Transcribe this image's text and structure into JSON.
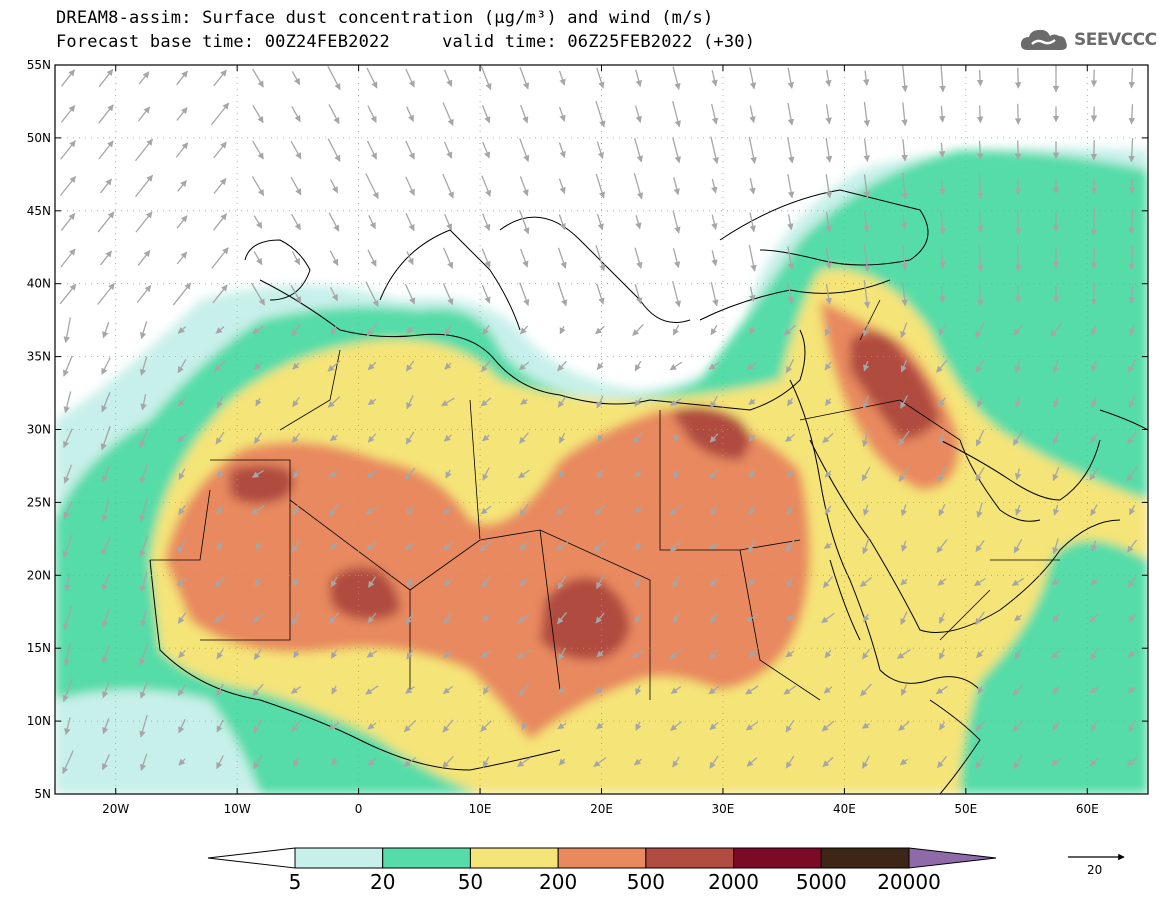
{
  "title": {
    "line1": "DREAM8-assim: Surface dust concentration (µg/m³) and wind (m/s)",
    "base_time_label": "Forecast base time: 00Z24FEB2022",
    "valid_time_label": "valid time: 06Z25FEB2022 (+30)"
  },
  "logo": {
    "text": "SEEVCCC",
    "icon": "cloud-icon",
    "color": "#6b6b6b"
  },
  "map": {
    "lon_range": [
      -25,
      65
    ],
    "lat_range": [
      5,
      55
    ],
    "lon_ticks": [
      {
        "value": -20,
        "label": "20W"
      },
      {
        "value": -10,
        "label": "10W"
      },
      {
        "value": 0,
        "label": "0"
      },
      {
        "value": 10,
        "label": "10E"
      },
      {
        "value": 20,
        "label": "20E"
      },
      {
        "value": 30,
        "label": "30E"
      },
      {
        "value": 40,
        "label": "40E"
      },
      {
        "value": 50,
        "label": "50E"
      },
      {
        "value": 60,
        "label": "60E"
      }
    ],
    "lat_ticks": [
      {
        "value": 5,
        "label": "5N"
      },
      {
        "value": 10,
        "label": "10N"
      },
      {
        "value": 15,
        "label": "15N"
      },
      {
        "value": 20,
        "label": "20N"
      },
      {
        "value": 25,
        "label": "25N"
      },
      {
        "value": 30,
        "label": "30N"
      },
      {
        "value": 35,
        "label": "35N"
      },
      {
        "value": 40,
        "label": "40N"
      },
      {
        "value": 45,
        "label": "45N"
      },
      {
        "value": 50,
        "label": "50N"
      },
      {
        "value": 55,
        "label": "55N"
      }
    ],
    "gridlines": true
  },
  "colorbar": {
    "levels": [
      "5",
      "20",
      "50",
      "200",
      "500",
      "2000",
      "5000",
      "20000"
    ],
    "colors": [
      "#c8f0ea",
      "#55dca8",
      "#f5e478",
      "#e8895e",
      "#b04c40",
      "#7a0a26",
      "#3d2616",
      "#8e6aa8"
    ],
    "below_color": "#ffffff"
  },
  "vector_key": {
    "label": "20"
  }
}
